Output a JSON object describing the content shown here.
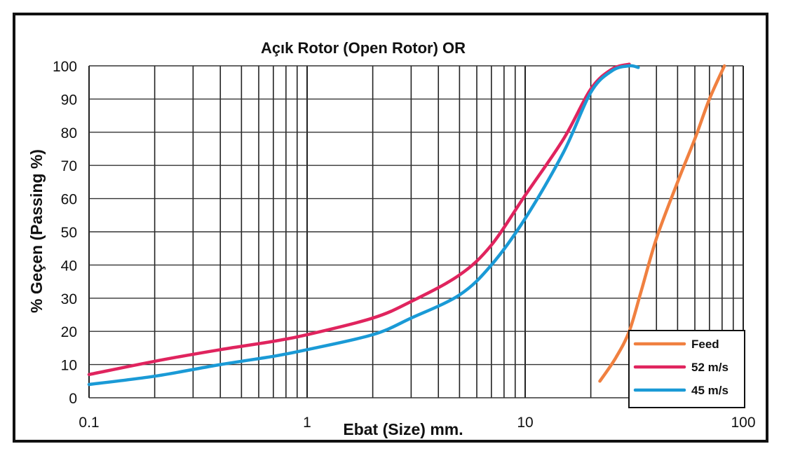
{
  "chart_data": {
    "type": "line",
    "title": "Açık Rotor (Open Rotor) OR",
    "xlabel": "Ebat (Size) mm.",
    "ylabel": "% Geçen (Passing %)",
    "xscale": "log",
    "xlim": [
      0.1,
      100
    ],
    "ylim": [
      0,
      100
    ],
    "x_ticks": [
      "0.1",
      "1",
      "10",
      "100"
    ],
    "y_ticks": [
      "0",
      "10",
      "20",
      "30",
      "40",
      "50",
      "60",
      "70",
      "80",
      "90",
      "100"
    ],
    "grid": true,
    "legend_position": "bottom-right",
    "series": [
      {
        "name": "Feed",
        "color": "#f08040",
        "points": [
          [
            22,
            5
          ],
          [
            26,
            12
          ],
          [
            30,
            20
          ],
          [
            34,
            32
          ],
          [
            40,
            48
          ],
          [
            50,
            65
          ],
          [
            60,
            78
          ],
          [
            70,
            90
          ],
          [
            82,
            100
          ]
        ]
      },
      {
        "name": "52 m/s",
        "color": "#e0245e",
        "points": [
          [
            0.1,
            7
          ],
          [
            0.2,
            11
          ],
          [
            0.4,
            14.5
          ],
          [
            0.7,
            17
          ],
          [
            1,
            19
          ],
          [
            2,
            24
          ],
          [
            3,
            29
          ],
          [
            5,
            37
          ],
          [
            7,
            46
          ],
          [
            10,
            61
          ],
          [
            15,
            78
          ],
          [
            20,
            93
          ],
          [
            25,
            99
          ],
          [
            30,
            100.5
          ]
        ]
      },
      {
        "name": "45 m/s",
        "color": "#1a9ad6",
        "points": [
          [
            0.1,
            4
          ],
          [
            0.2,
            6.5
          ],
          [
            0.4,
            10
          ],
          [
            0.7,
            12.5
          ],
          [
            1,
            14.5
          ],
          [
            2,
            19
          ],
          [
            3,
            24
          ],
          [
            5,
            31
          ],
          [
            7,
            40
          ],
          [
            10,
            54
          ],
          [
            15,
            74
          ],
          [
            20,
            92
          ],
          [
            25,
            98.5
          ],
          [
            30,
            100
          ],
          [
            33,
            99.5
          ]
        ]
      }
    ]
  }
}
